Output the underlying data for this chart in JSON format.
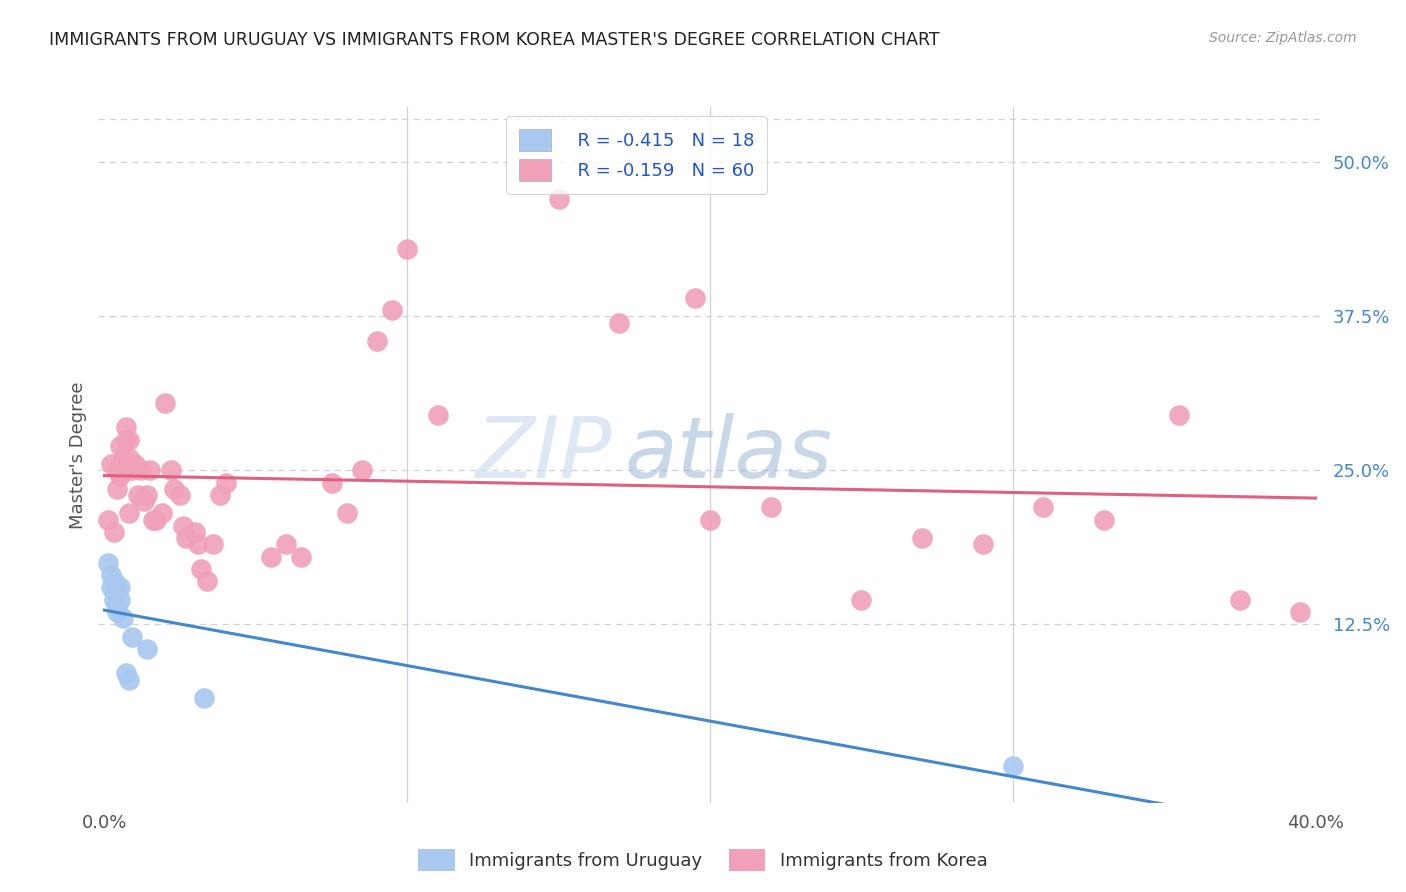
{
  "title": "IMMIGRANTS FROM URUGUAY VS IMMIGRANTS FROM KOREA MASTER'S DEGREE CORRELATION CHART",
  "source": "Source: ZipAtlas.com",
  "ylabel": "Master's Degree",
  "ytick_labels": [
    "12.5%",
    "25.0%",
    "37.5%",
    "50.0%"
  ],
  "ytick_values": [
    0.125,
    0.25,
    0.375,
    0.5
  ],
  "xtick_values": [
    0.0,
    0.1,
    0.2,
    0.3,
    0.4
  ],
  "xlim": [
    -0.002,
    0.402
  ],
  "ylim": [
    -0.02,
    0.545
  ],
  "legend_r_uruguay": "R = -0.415",
  "legend_n_uruguay": "N = 18",
  "legend_r_korea": "R = -0.159",
  "legend_n_korea": "N = 60",
  "uruguay_color": "#a8c8f0",
  "korea_color": "#f0a0b8",
  "line_uruguay_color": "#4488cc",
  "line_korea_color": "#e06080",
  "label_uruguay": "Immigrants from Uruguay",
  "label_korea": "Immigrants from Korea",
  "watermark_zip": "ZIP",
  "watermark_atlas": "atlas",
  "uruguay_x": [
    0.001,
    0.002,
    0.002,
    0.003,
    0.003,
    0.003,
    0.004,
    0.004,
    0.004,
    0.005,
    0.005,
    0.006,
    0.007,
    0.008,
    0.009,
    0.014,
    0.033,
    0.3
  ],
  "uruguay_y": [
    0.175,
    0.165,
    0.155,
    0.16,
    0.15,
    0.145,
    0.135,
    0.14,
    0.155,
    0.145,
    0.155,
    0.13,
    0.085,
    0.08,
    0.115,
    0.105,
    0.065,
    0.01
  ],
  "korea_x": [
    0.001,
    0.002,
    0.003,
    0.004,
    0.004,
    0.005,
    0.005,
    0.006,
    0.006,
    0.007,
    0.007,
    0.008,
    0.008,
    0.008,
    0.009,
    0.01,
    0.011,
    0.012,
    0.013,
    0.014,
    0.015,
    0.016,
    0.017,
    0.019,
    0.02,
    0.022,
    0.023,
    0.025,
    0.026,
    0.027,
    0.03,
    0.031,
    0.032,
    0.034,
    0.036,
    0.038,
    0.04,
    0.055,
    0.06,
    0.065,
    0.075,
    0.08,
    0.085,
    0.09,
    0.095,
    0.1,
    0.11,
    0.15,
    0.17,
    0.195,
    0.2,
    0.22,
    0.25,
    0.27,
    0.29,
    0.31,
    0.33,
    0.355,
    0.375,
    0.395
  ],
  "korea_y": [
    0.21,
    0.255,
    0.2,
    0.25,
    0.235,
    0.27,
    0.245,
    0.26,
    0.25,
    0.285,
    0.275,
    0.275,
    0.26,
    0.215,
    0.25,
    0.255,
    0.23,
    0.25,
    0.225,
    0.23,
    0.25,
    0.21,
    0.21,
    0.215,
    0.305,
    0.25,
    0.235,
    0.23,
    0.205,
    0.195,
    0.2,
    0.19,
    0.17,
    0.16,
    0.19,
    0.23,
    0.24,
    0.18,
    0.19,
    0.18,
    0.24,
    0.215,
    0.25,
    0.355,
    0.38,
    0.43,
    0.295,
    0.47,
    0.37,
    0.39,
    0.21,
    0.22,
    0.145,
    0.195,
    0.19,
    0.22,
    0.21,
    0.295,
    0.145,
    0.135
  ],
  "background_color": "#ffffff",
  "grid_color": "#d0d0e0",
  "title_color": "#222222",
  "source_color": "#999999",
  "ylabel_color": "#555555",
  "right_tick_color": "#4488cc",
  "bottom_tick_color": "#555555"
}
